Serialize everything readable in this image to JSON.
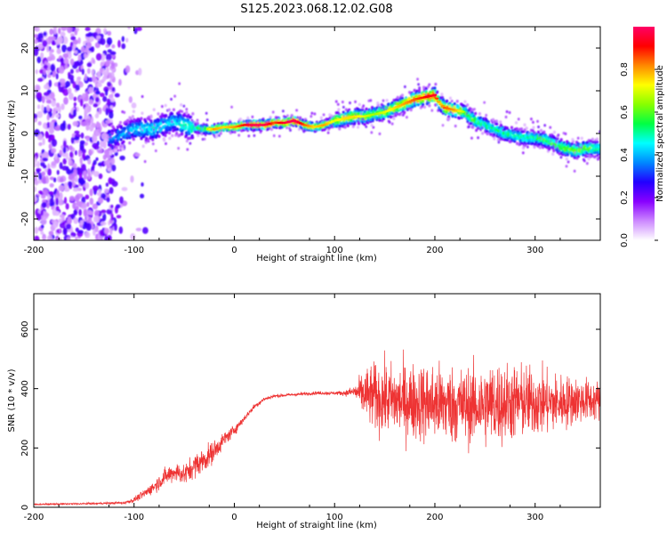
{
  "title": "S125.2023.068.12.02.G08",
  "colors": {
    "snr_line": "#ee3333",
    "axis": "#000000",
    "background": "#ffffff"
  },
  "colorbar": {
    "label": "Normalized spectral amplitude",
    "range": [
      0.0,
      1.0
    ],
    "ticks": [
      "0.0",
      "0.2",
      "0.4",
      "0.6",
      "0.8"
    ],
    "tick_values": [
      0.0,
      0.2,
      0.4,
      0.6,
      0.8
    ],
    "colormap": [
      "#ffffff",
      "#cc88ff",
      "#8800ff",
      "#2200ff",
      "#0088ff",
      "#00ffff",
      "#00ff44",
      "#88ff00",
      "#ffff00",
      "#ff8800",
      "#ff0000",
      "#ff0066"
    ]
  },
  "chart_data": [
    {
      "type": "heatmap",
      "xlabel": "Height of straight line (km)",
      "ylabel": "Frequency (Hz)",
      "xlim": [
        -200,
        365
      ],
      "ylim": [
        -25,
        25
      ],
      "xticks": [
        "-200",
        "-100",
        "0",
        "100",
        "200",
        "300"
      ],
      "xtick_values": [
        -200,
        -100,
        0,
        100,
        200,
        300
      ],
      "yticks": [
        "-20",
        "-10",
        "0",
        "10",
        "20"
      ],
      "ytick_values": [
        -20,
        -10,
        0,
        10,
        20
      ],
      "ridge": {
        "x": [
          -120,
          -100,
          -80,
          -60,
          -45,
          -30,
          -20,
          -10,
          0,
          10,
          20,
          30,
          40,
          50,
          60,
          70,
          80,
          90,
          100,
          110,
          120,
          130,
          140,
          150,
          160,
          170,
          180,
          190,
          200,
          205,
          210,
          220,
          230,
          240,
          250,
          260,
          270,
          280,
          290,
          300,
          310,
          320,
          330,
          340,
          350,
          365
        ],
        "freq": [
          -1,
          1,
          1,
          3,
          1.5,
          1,
          1,
          1.5,
          1.5,
          2,
          2,
          2,
          2.5,
          2.5,
          3,
          2,
          1.5,
          2,
          3,
          3.5,
          4,
          4,
          4.5,
          5,
          6,
          7,
          8,
          8.5,
          9,
          7,
          6,
          5.5,
          5,
          3,
          2,
          1,
          0,
          -0.5,
          -1,
          -1,
          -1.5,
          -2.5,
          -3.5,
          -4,
          -3.5,
          -3.5
        ],
        "amplitude": [
          0.35,
          0.4,
          0.45,
          0.4,
          0.5,
          0.55,
          0.75,
          0.7,
          0.75,
          0.85,
          0.95,
          0.95,
          0.8,
          0.9,
          0.95,
          0.8,
          0.7,
          0.75,
          0.65,
          0.7,
          0.7,
          0.65,
          0.6,
          0.65,
          0.7,
          0.75,
          0.8,
          0.85,
          0.9,
          0.7,
          0.8,
          0.75,
          0.6,
          0.55,
          0.5,
          0.5,
          0.5,
          0.5,
          0.5,
          0.5,
          0.55,
          0.55,
          0.6,
          0.6,
          0.6,
          0.5
        ]
      },
      "noise_region_x": [
        -200,
        -120
      ]
    },
    {
      "type": "line",
      "xlabel": "Height of straight line (km)",
      "ylabel": "SNR (10 * v/v)",
      "xlim": [
        -200,
        365
      ],
      "ylim": [
        0,
        720
      ],
      "xticks": [
        "-200",
        "-100",
        "0",
        "100",
        "200",
        "300"
      ],
      "xtick_values": [
        -200,
        -100,
        0,
        100,
        200,
        300
      ],
      "yticks": [
        "0",
        "200",
        "400",
        "600"
      ],
      "ytick_values": [
        0,
        200,
        400,
        600
      ],
      "series": [
        {
          "x": [
            -200,
            -150,
            -110,
            -100,
            -90,
            -80,
            -70,
            -60,
            -50,
            -40,
            -30,
            -20,
            -10,
            0,
            10,
            20,
            30,
            40,
            60,
            80,
            100,
            110,
            120,
            130,
            140,
            160,
            180,
            200,
            220,
            240,
            260,
            280,
            300,
            320,
            340,
            365
          ],
          "mean": [
            10,
            12,
            15,
            25,
            45,
            70,
            100,
            120,
            110,
            140,
            160,
            190,
            230,
            260,
            300,
            340,
            365,
            375,
            380,
            385,
            385,
            385,
            390,
            380,
            370,
            360,
            355,
            350,
            345,
            340,
            350,
            355,
            355,
            350,
            360,
            360
          ],
          "spread": [
            4,
            4,
            6,
            12,
            20,
            30,
            40,
            45,
            50,
            55,
            60,
            50,
            35,
            25,
            15,
            12,
            10,
            8,
            8,
            8,
            8,
            12,
            30,
            120,
            160,
            170,
            180,
            190,
            180,
            180,
            200,
            180,
            160,
            140,
            110,
            90
          ]
        }
      ]
    }
  ]
}
